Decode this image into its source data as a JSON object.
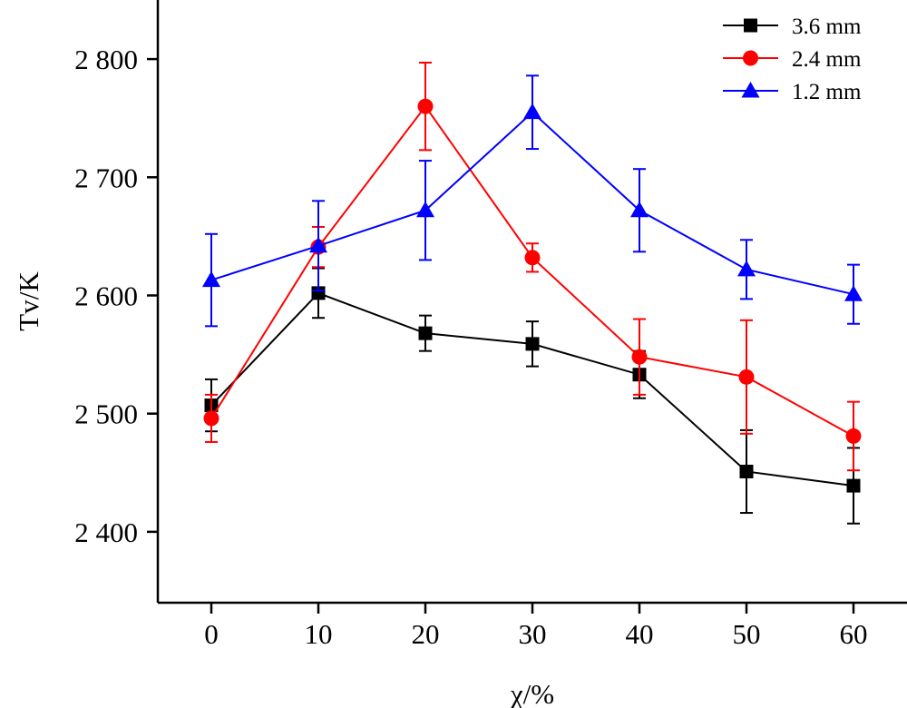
{
  "chart_data": {
    "type": "line",
    "xlabel": "χ/%",
    "ylabel": "Tv/K",
    "x": [
      0,
      10,
      20,
      30,
      40,
      50,
      60
    ],
    "x_ticks": [
      0,
      10,
      20,
      30,
      40,
      50,
      60
    ],
    "x_tick_labels": [
      "0",
      "10",
      "20",
      "30",
      "40",
      "50",
      "60"
    ],
    "xlim": [
      -5,
      65
    ],
    "y_ticks": [
      2400,
      2500,
      2600,
      2700,
      2800
    ],
    "y_tick_labels": [
      "2 400",
      "2 500",
      "2 600",
      "2 700",
      "2 800"
    ],
    "ylim": [
      2340,
      2850
    ],
    "grid": false,
    "legend_position": "top-right",
    "series": [
      {
        "name": "3.6 mm",
        "color": "#000000",
        "marker": "square",
        "values": [
          2507,
          2602,
          2568,
          2559,
          2533,
          2451,
          2439
        ],
        "errors": [
          22,
          21,
          15,
          19,
          20,
          35,
          32
        ]
      },
      {
        "name": "2.4 mm",
        "color": "#ff0000",
        "marker": "circle",
        "values": [
          2496,
          2641,
          2760,
          2632,
          2548,
          2531,
          2481
        ],
        "errors": [
          20,
          17,
          37,
          12,
          32,
          48,
          29
        ]
      },
      {
        "name": "1.2 mm",
        "color": "#0000ff",
        "marker": "triangle",
        "values": [
          2613,
          2642,
          2672,
          2755,
          2672,
          2622,
          2601
        ],
        "errors": [
          39,
          38,
          42,
          31,
          35,
          25,
          25
        ]
      }
    ]
  }
}
